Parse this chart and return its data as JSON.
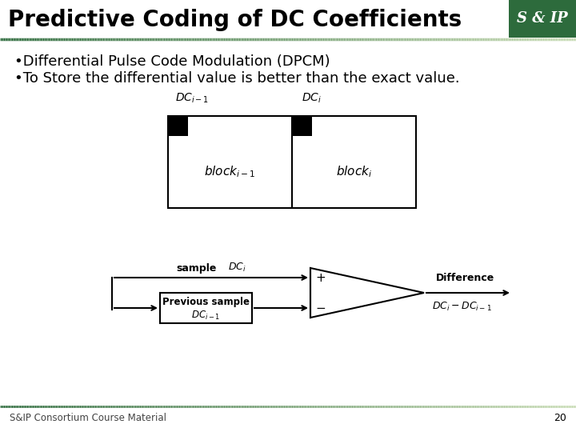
{
  "title": "Predictive Coding of DC Coefficients",
  "title_fontsize": 20,
  "bullet1": "•Differential Pulse Code Modulation (DPCM)",
  "bullet2": "•To Store the differential value is better than the exact value.",
  "bullet_fontsize": 13,
  "footer_text": "S&IP Consortium Course Material",
  "footer_page": "20",
  "bg_color": "#ffffff",
  "title_color": "#000000",
  "header_box_color": "#2d6b3c",
  "header_box_text": "S & IP",
  "line_color_dark": "#2d6b3c"
}
